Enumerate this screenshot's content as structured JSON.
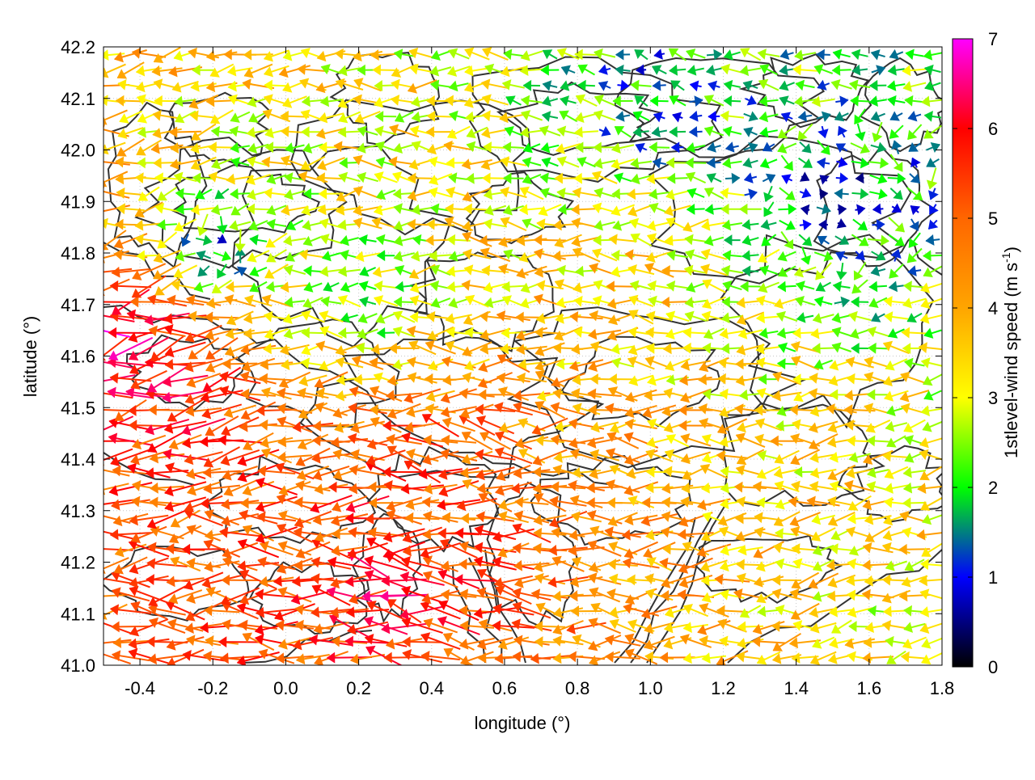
{
  "chart_data": {
    "type": "vector-field",
    "title": "",
    "xlabel": "longitude (°)",
    "ylabel": "latitude (°)",
    "xlim": [
      -0.5,
      1.8
    ],
    "ylim": [
      41.0,
      42.2
    ],
    "x_ticks": [
      "-0.4",
      "-0.2",
      "0.0",
      "0.2",
      "0.4",
      "0.6",
      "0.8",
      "1.0",
      "1.2",
      "1.4",
      "1.6",
      "1.8"
    ],
    "x_tick_values": [
      -0.4,
      -0.2,
      0.0,
      0.2,
      0.4,
      0.6,
      0.8,
      1.0,
      1.2,
      1.4,
      1.6,
      1.8
    ],
    "y_ticks": [
      "41.0",
      "41.1",
      "41.2",
      "41.3",
      "41.4",
      "41.5",
      "41.6",
      "41.7",
      "41.8",
      "41.9",
      "42.0",
      "42.1",
      "42.2"
    ],
    "y_tick_values": [
      41.0,
      41.1,
      41.2,
      41.3,
      41.4,
      41.5,
      41.6,
      41.7,
      41.8,
      41.9,
      42.0,
      42.1,
      42.2
    ],
    "grid": true,
    "colorbar": {
      "label_text": "1stlevel-wind speed (m s",
      "label_sup": "-1",
      "label_close": ")",
      "range": [
        0,
        7
      ],
      "ticks": [
        "0",
        "1",
        "2",
        "3",
        "4",
        "5",
        "6",
        "7"
      ],
      "tick_values": [
        0,
        1,
        2,
        3,
        4,
        5,
        6,
        7
      ],
      "stops": [
        {
          "v": 0,
          "color": "#000000"
        },
        {
          "v": 1,
          "color": "#0000ff"
        },
        {
          "v": 2,
          "color": "#00ff00"
        },
        {
          "v": 3,
          "color": "#ffff00"
        },
        {
          "v": 4,
          "color": "#ffa500"
        },
        {
          "v": 5,
          "color": "#ff6600"
        },
        {
          "v": 6,
          "color": "#ff0000"
        },
        {
          "v": 7,
          "color": "#ff00ff"
        }
      ]
    },
    "contour_color": "#333333",
    "vectors": {
      "description": "approximate wind field, dominant easterly (westward) flow",
      "samples": [
        {
          "lon": -0.45,
          "lat": 41.65,
          "u": -4.5,
          "v": -1.0,
          "speed": 6.5
        },
        {
          "lon": -0.35,
          "lat": 41.6,
          "u": -4.8,
          "v": -1.2,
          "speed": 6.2
        },
        {
          "lon": -0.3,
          "lat": 41.5,
          "u": -4.0,
          "v": -0.3,
          "speed": 5.6
        },
        {
          "lon": 0.2,
          "lat": 41.3,
          "u": -4.2,
          "v": -0.2,
          "speed": 5.5
        },
        {
          "lon": 0.3,
          "lat": 41.15,
          "u": -3.8,
          "v": 0.8,
          "speed": 5.8
        },
        {
          "lon": 0.4,
          "lat": 41.4,
          "u": -3.5,
          "v": 0.5,
          "speed": 5.2
        },
        {
          "lon": 1.6,
          "lat": 41.05,
          "u": -3.0,
          "v": -0.6,
          "speed": 3.2
        },
        {
          "lon": 0.9,
          "lat": 41.75,
          "u": -3.0,
          "v": 0.2,
          "speed": 3.5
        },
        {
          "lon": 0.2,
          "lat": 41.7,
          "u": -2.0,
          "v": 0.0,
          "speed": 2.0
        },
        {
          "lon": -0.2,
          "lat": 41.8,
          "u": 1.0,
          "v": 0.0,
          "speed": 1.0
        },
        {
          "lon": 1.5,
          "lat": 41.9,
          "u": 1.0,
          "v": -0.2,
          "speed": 1.2
        },
        {
          "lon": 1.0,
          "lat": 42.1,
          "u": -1.0,
          "v": 0.3,
          "speed": 1.5
        }
      ]
    }
  }
}
